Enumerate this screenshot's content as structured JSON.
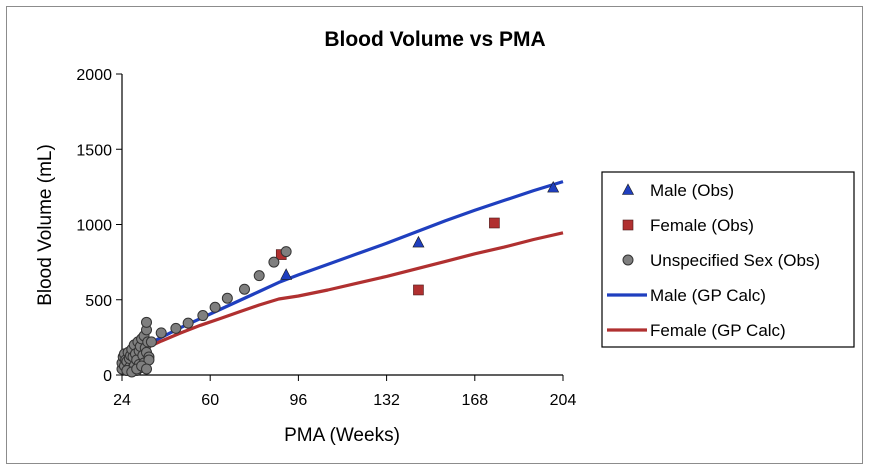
{
  "chart_data": {
    "type": "scatter",
    "title": "Blood Volume vs PMA",
    "xlabel": "PMA (Weeks)",
    "ylabel": "Blood Volume (mL)",
    "xlim": [
      24,
      204
    ],
    "ylim": [
      0,
      2000
    ],
    "xticks": [
      "24",
      "60",
      "96",
      "132",
      "168",
      "204"
    ],
    "yticks": [
      "0",
      "500",
      "1000",
      "1500",
      "2000"
    ],
    "legend_position": "right",
    "colors": {
      "male": "#1f3fbf",
      "female": "#b03030",
      "unspecified": "#7f7f7f"
    },
    "series": [
      {
        "name": "Male (Obs)",
        "kind": "scatter",
        "marker": "triangle",
        "x": [
          91,
          145,
          200
        ],
        "y": [
          665,
          880,
          1245
        ]
      },
      {
        "name": "Female (Obs)",
        "kind": "scatter",
        "marker": "square",
        "x": [
          89,
          145,
          176
        ],
        "y": [
          800,
          565,
          1010
        ]
      },
      {
        "name": "Unspecified Sex (Obs)",
        "kind": "scatter",
        "marker": "circle",
        "x": [
          24,
          24,
          24.5,
          25,
          25,
          25.5,
          26,
          26,
          26.5,
          27,
          27,
          27.5,
          28,
          28,
          28.5,
          29,
          29,
          29.5,
          30,
          30,
          30.5,
          31,
          31,
          31.5,
          32,
          32,
          32.5,
          33,
          33,
          33.5,
          34,
          34,
          34.5,
          34,
          35,
          35,
          26,
          28,
          30,
          32,
          34,
          36,
          40,
          46,
          51,
          57,
          62,
          67,
          74,
          80,
          86,
          91
        ],
        "y": [
          40,
          80,
          120,
          60,
          140,
          100,
          30,
          90,
          150,
          50,
          110,
          130,
          40,
          170,
          120,
          60,
          200,
          140,
          30,
          100,
          220,
          70,
          160,
          190,
          50,
          240,
          130,
          80,
          260,
          180,
          300,
          150,
          220,
          350,
          120,
          100,
          30,
          20,
          40,
          60,
          40,
          220,
          280,
          310,
          345,
          395,
          450,
          510,
          570,
          660,
          750,
          820
        ]
      },
      {
        "name": "Male (GP Calc)",
        "kind": "line",
        "x": [
          24,
          28,
          32,
          36,
          40,
          48,
          56,
          64,
          72,
          80,
          88,
          96,
          108,
          120,
          132,
          144,
          156,
          168,
          180,
          192,
          204
        ],
        "y": [
          80,
          130,
          175,
          215,
          250,
          315,
          375,
          435,
          495,
          555,
          615,
          665,
          735,
          805,
          875,
          950,
          1025,
          1095,
          1160,
          1225,
          1285
        ]
      },
      {
        "name": "Female (GP Calc)",
        "kind": "line",
        "x": [
          24,
          28,
          32,
          36,
          40,
          48,
          56,
          64,
          72,
          80,
          88,
          96,
          108,
          120,
          132,
          144,
          156,
          168,
          180,
          192,
          204
        ],
        "y": [
          75,
          120,
          160,
          195,
          225,
          280,
          330,
          375,
          420,
          465,
          505,
          525,
          565,
          610,
          655,
          705,
          755,
          805,
          850,
          900,
          945
        ]
      }
    ]
  }
}
